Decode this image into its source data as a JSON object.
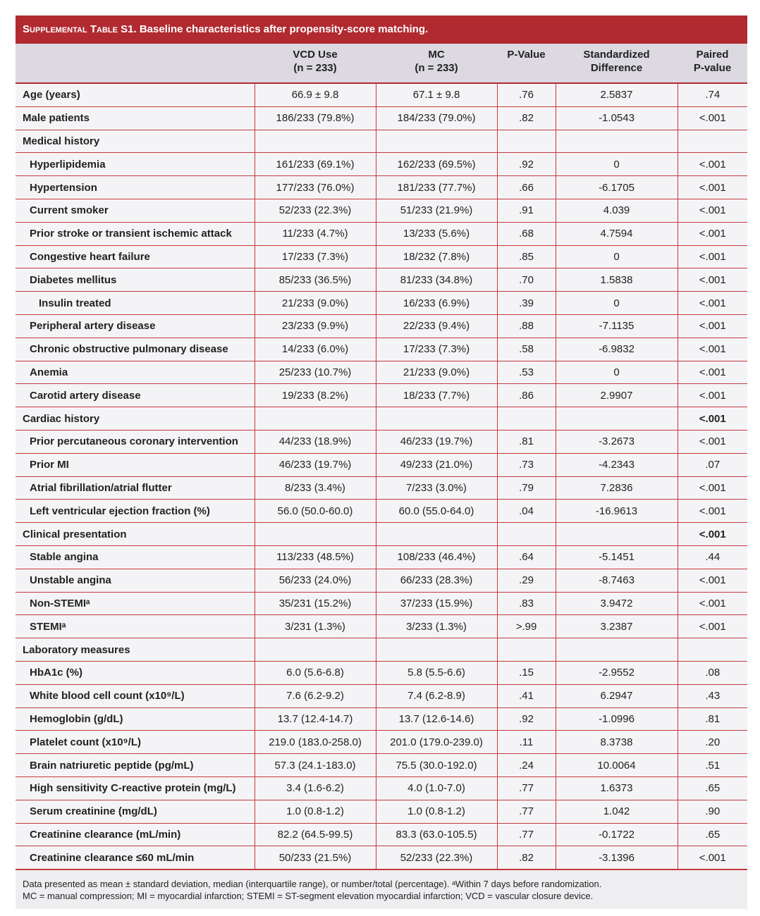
{
  "title": {
    "label": "Supplemental Table S1.",
    "text": " Baseline characteristics after propensity-score matching."
  },
  "columns": [
    "",
    "VCD Use\n(n = 233)",
    "MC\n(n = 233)",
    "P-Value",
    "Standardized\nDifference",
    "Paired\nP-value"
  ],
  "rows": [
    {
      "label": "Age (years)",
      "indent": 0,
      "cells": [
        "66.9 ± 9.8",
        "67.1 ± 9.8",
        ".76",
        "2.5837",
        ".74"
      ]
    },
    {
      "label": "Male patients",
      "indent": 0,
      "cells": [
        "186/233 (79.8%)",
        "184/233 (79.0%)",
        ".82",
        "-1.0543",
        "<.001"
      ]
    },
    {
      "label": "Medical history",
      "indent": 0,
      "cells": [
        "",
        "",
        "",
        "",
        ""
      ]
    },
    {
      "label": "Hyperlipidemia",
      "indent": 1,
      "cells": [
        "161/233 (69.1%)",
        "162/233 (69.5%)",
        ".92",
        "0",
        "<.001"
      ]
    },
    {
      "label": "Hypertension",
      "indent": 1,
      "cells": [
        "177/233 (76.0%)",
        "181/233 (77.7%)",
        ".66",
        "-6.1705",
        "<.001"
      ]
    },
    {
      "label": "Current smoker",
      "indent": 1,
      "cells": [
        "52/233 (22.3%)",
        "51/233 (21.9%)",
        ".91",
        "4.039",
        "<.001"
      ]
    },
    {
      "label": "Prior stroke or transient ischemic attack",
      "indent": 1,
      "cells": [
        "11/233 (4.7%)",
        "13/233 (5.6%)",
        ".68",
        "4.7594",
        "<.001"
      ]
    },
    {
      "label": "Congestive heart failure",
      "indent": 1,
      "cells": [
        "17/233 (7.3%)",
        "18/232 (7.8%)",
        ".85",
        "0",
        "<.001"
      ]
    },
    {
      "label": "Diabetes mellitus",
      "indent": 1,
      "cells": [
        "85/233 (36.5%)",
        "81/233 (34.8%)",
        ".70",
        "1.5838",
        "<.001"
      ]
    },
    {
      "label": "Insulin treated",
      "indent": 2,
      "cells": [
        "21/233 (9.0%)",
        "16/233 (6.9%)",
        ".39",
        "0",
        "<.001"
      ]
    },
    {
      "label": "Peripheral artery disease",
      "indent": 1,
      "cells": [
        "23/233 (9.9%)",
        "22/233 (9.4%)",
        ".88",
        "-7.1135",
        "<.001"
      ]
    },
    {
      "label": "Chronic obstructive pulmonary disease",
      "indent": 1,
      "cells": [
        "14/233 (6.0%)",
        "17/233 (7.3%)",
        ".58",
        "-6.9832",
        "<.001"
      ]
    },
    {
      "label": "Anemia",
      "indent": 1,
      "cells": [
        "25/233 (10.7%)",
        "21/233 (9.0%)",
        ".53",
        "0",
        "<.001"
      ]
    },
    {
      "label": "Carotid artery disease",
      "indent": 1,
      "cells": [
        "19/233 (8.2%)",
        "18/233 (7.7%)",
        ".86",
        "2.9907",
        "<.001"
      ]
    },
    {
      "label": "Cardiac history",
      "indent": 0,
      "cells": [
        "",
        "",
        "",
        "",
        "<.001"
      ]
    },
    {
      "label": "Prior percutaneous coronary intervention",
      "indent": 1,
      "cells": [
        "44/233 (18.9%)",
        "46/233 (19.7%)",
        ".81",
        "-3.2673",
        "<.001"
      ]
    },
    {
      "label": "Prior MI",
      "indent": 1,
      "cells": [
        "46/233 (19.7%)",
        "49/233 (21.0%)",
        ".73",
        "-4.2343",
        ".07"
      ]
    },
    {
      "label": "Atrial fibrillation/atrial flutter",
      "indent": 1,
      "cells": [
        "8/233 (3.4%)",
        "7/233 (3.0%)",
        ".79",
        "7.2836",
        "<.001"
      ]
    },
    {
      "label": "Left ventricular ejection fraction (%)",
      "indent": 1,
      "cells": [
        "56.0 (50.0-60.0)",
        "60.0 (55.0-64.0)",
        ".04",
        "-16.9613",
        "<.001"
      ]
    },
    {
      "label": "Clinical presentation",
      "indent": 0,
      "cells": [
        "",
        "",
        "",
        "",
        "<.001"
      ]
    },
    {
      "label": "Stable angina",
      "indent": 1,
      "cells": [
        "113/233 (48.5%)",
        "108/233 (46.4%)",
        ".64",
        "-5.1451",
        ".44"
      ]
    },
    {
      "label": "Unstable angina",
      "indent": 1,
      "cells": [
        "56/233 (24.0%)",
        "66/233 (28.3%)",
        ".29",
        "-8.7463",
        "<.001"
      ]
    },
    {
      "label": "Non-STEMIᵃ",
      "indent": 1,
      "cells": [
        "35/231 (15.2%)",
        "37/233 (15.9%)",
        ".83",
        "3.9472",
        "<.001"
      ]
    },
    {
      "label": "STEMIᵃ",
      "indent": 1,
      "cells": [
        "3/231 (1.3%)",
        "3/233 (1.3%)",
        ">.99",
        "3.2387",
        "<.001"
      ]
    },
    {
      "label": "Laboratory measures",
      "indent": 0,
      "cells": [
        "",
        "",
        "",
        "",
        ""
      ]
    },
    {
      "label": "HbA1c (%)",
      "indent": 1,
      "cells": [
        "6.0 (5.6-6.8)",
        "5.8 (5.5-6.6)",
        ".15",
        "-2.9552",
        ".08"
      ]
    },
    {
      "label": "White blood cell count (x10⁹/L)",
      "indent": 1,
      "cells": [
        "7.6 (6.2-9.2)",
        "7.4 (6.2-8.9)",
        ".41",
        "6.2947",
        ".43"
      ]
    },
    {
      "label": "Hemoglobin (g/dL)",
      "indent": 1,
      "cells": [
        "13.7 (12.4-14.7)",
        "13.7 (12.6-14.6)",
        ".92",
        "-1.0996",
        ".81"
      ]
    },
    {
      "label": "Platelet count (x10⁹/L)",
      "indent": 1,
      "cells": [
        "219.0 (183.0-258.0)",
        "201.0 (179.0-239.0)",
        ".11",
        "8.3738",
        ".20"
      ]
    },
    {
      "label": "Brain natriuretic peptide (pg/mL)",
      "indent": 1,
      "cells": [
        "57.3 (24.1-183.0)",
        "75.5 (30.0-192.0)",
        ".24",
        "10.0064",
        ".51"
      ]
    },
    {
      "label": "High sensitivity C-reactive protein (mg/L)",
      "indent": 1,
      "cells": [
        "3.4 (1.6-6.2)",
        "4.0 (1.0-7.0)",
        ".77",
        "1.6373",
        ".65"
      ]
    },
    {
      "label": "Serum creatinine (mg/dL)",
      "indent": 1,
      "cells": [
        "1.0 (0.8-1.2)",
        "1.0 (0.8-1.2)",
        ".77",
        "1.042",
        ".90"
      ]
    },
    {
      "label": "Creatinine clearance (mL/min)",
      "indent": 1,
      "cells": [
        "82.2 (64.5-99.5)",
        "83.3 (63.0-105.5)",
        ".77",
        "-0.1722",
        ".65"
      ]
    },
    {
      "label": "Creatinine clearance ≤60 mL/min",
      "indent": 1,
      "cells": [
        "50/233 (21.5%)",
        "52/233 (22.3%)",
        ".82",
        "-3.1396",
        "<.001"
      ]
    }
  ],
  "footnote": [
    "Data presented as mean ± standard deviation, median (interquartile range), or number/total (percentage). ᵃWithin 7 days before randomization.",
    "MC = manual compression; MI = myocardial infarction; STEMI = ST-segment elevation myocardial infarction; VCD = vascular closure device."
  ],
  "colors": {
    "accent": "#b12a30",
    "header_bg": "#dcd9e1",
    "row_bg": "#f4f4f6"
  }
}
